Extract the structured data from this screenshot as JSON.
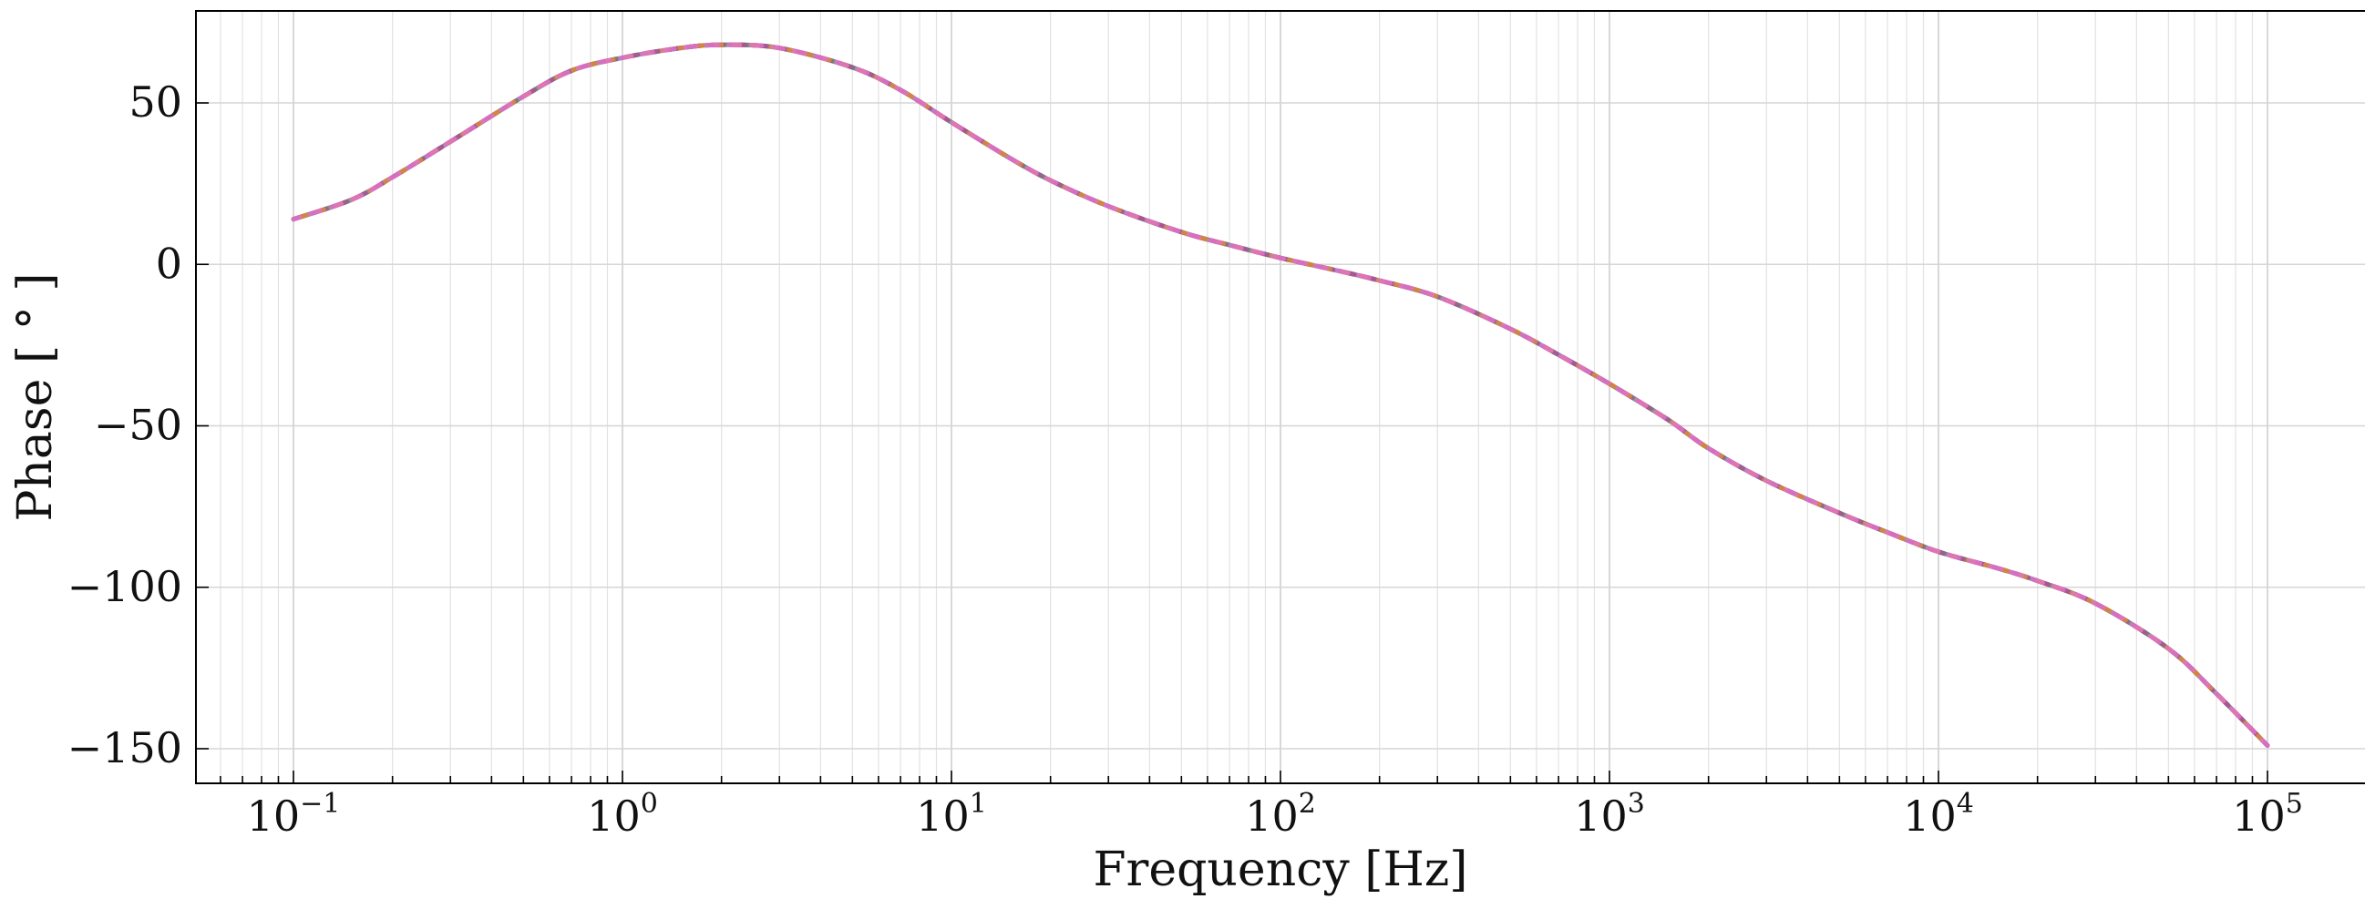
{
  "chart_data": {
    "type": "line",
    "title": "",
    "xlabel": "Frequency [Hz]",
    "ylabel": "Phase [ ° ]",
    "xscale": "log",
    "xlim": [
      0.05,
      200000
    ],
    "ylim": [
      -160,
      78
    ],
    "grid": true,
    "x_ticks": [
      {
        "value": 0.1,
        "base": "10",
        "exp": "−1"
      },
      {
        "value": 1,
        "base": "10",
        "exp": "0"
      },
      {
        "value": 10,
        "base": "10",
        "exp": "1"
      },
      {
        "value": 100,
        "base": "10",
        "exp": "2"
      },
      {
        "value": 1000,
        "base": "10",
        "exp": "3"
      },
      {
        "value": 10000,
        "base": "10",
        "exp": "4"
      },
      {
        "value": 100000,
        "base": "10",
        "exp": "5"
      }
    ],
    "y_ticks": [
      {
        "value": 50,
        "label": "50"
      },
      {
        "value": 0,
        "label": "0"
      },
      {
        "value": -50,
        "label": "−50"
      },
      {
        "value": -100,
        "label": "−100"
      },
      {
        "value": -150,
        "label": "−150"
      }
    ],
    "series_colors": [
      "#4a7fc1",
      "#c94a4a",
      "#5a9a5a",
      "#a7569c",
      "#d98c3a",
      "#e072c8"
    ],
    "series": [
      {
        "x": [
          0.1,
          0.15,
          0.2,
          0.3,
          0.5,
          0.7,
          1,
          1.5,
          2,
          3,
          5,
          7,
          10,
          15,
          20,
          30,
          50,
          70,
          100,
          150,
          200,
          300,
          500,
          700,
          1000,
          1500,
          2000,
          3000,
          5000,
          7000,
          10000,
          15000,
          20000,
          30000,
          50000,
          70000,
          100000
        ],
        "values": [
          14,
          20,
          27,
          38,
          52,
          60,
          64,
          67,
          68,
          67,
          61,
          54,
          44,
          33,
          26,
          18,
          10,
          6,
          2,
          -2,
          -5,
          -10,
          -20,
          -28,
          -37,
          -48,
          -57,
          -67,
          -77,
          -83,
          -89,
          -94,
          -98,
          -105,
          -119,
          -133,
          -149
        ]
      }
    ]
  }
}
